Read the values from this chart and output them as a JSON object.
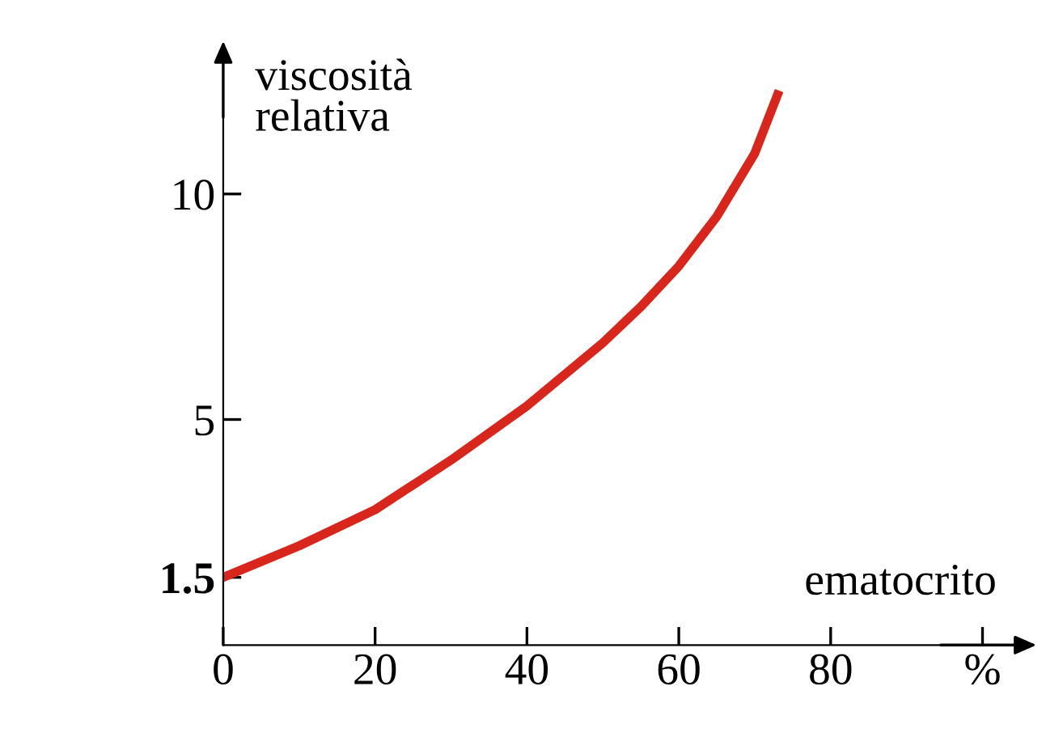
{
  "chart_data": {
    "type": "line",
    "xlabel": "ematocrito",
    "ylabel": "viscosità\nrelativa",
    "series": [
      {
        "color": "#d9261c",
        "x": [
          0,
          10,
          20,
          30,
          40,
          50,
          55,
          60,
          65,
          70,
          73
        ],
        "values": [
          1.5,
          2.2,
          3.0,
          4.1,
          5.3,
          6.7,
          7.5,
          8.4,
          9.5,
          10.9,
          12.2
        ]
      }
    ],
    "xlim": [
      0,
      105
    ],
    "ylim": [
      0,
      13
    ],
    "xticks": [
      0,
      20,
      40,
      60,
      80,
      {
        "value": 100,
        "label": "%"
      }
    ],
    "yticks": [
      {
        "value": 1.5,
        "label": "1.5"
      },
      5,
      10
    ],
    "grid": false,
    "legend": false,
    "marker": "none",
    "line_style": "solid"
  }
}
